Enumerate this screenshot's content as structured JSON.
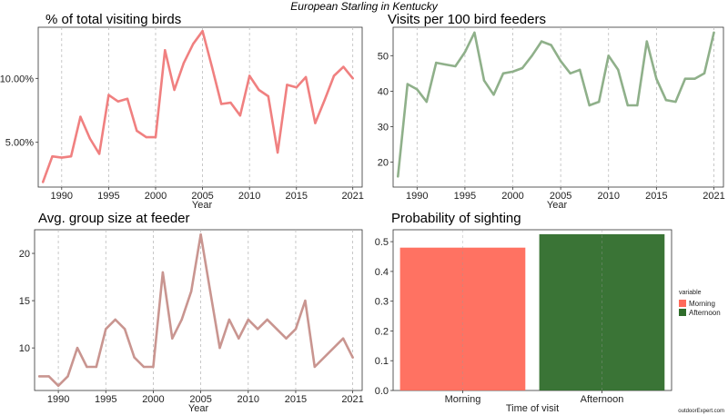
{
  "page": {
    "title": "European Starling in Kentucky",
    "credit": "outdoorExpert.com"
  },
  "chart_data": [
    {
      "id": "pct",
      "type": "line",
      "title": "% of total visiting birds",
      "xlabel": "Year",
      "ylabel": "",
      "color": "#f08080",
      "xlim": [
        1987.5,
        2022
      ],
      "ylim": [
        1.5,
        14.0
      ],
      "xticks": [
        1990,
        1995,
        2000,
        2005,
        2010,
        2015,
        2021
      ],
      "yticks": [
        5,
        10
      ],
      "ytick_labels": [
        "5.00%",
        "10.00%"
      ],
      "grid": "vertical-dashed",
      "x": [
        1988,
        1989,
        1990,
        1991,
        1992,
        1993,
        1994,
        1995,
        1996,
        1997,
        1998,
        1999,
        2000,
        2001,
        2002,
        2003,
        2004,
        2005,
        2006,
        2007,
        2008,
        2009,
        2010,
        2011,
        2012,
        2013,
        2014,
        2015,
        2016,
        2017,
        2018,
        2019,
        2020,
        2021
      ],
      "values": [
        1.9,
        3.9,
        3.8,
        3.9,
        7.0,
        5.3,
        4.1,
        8.7,
        8.2,
        8.4,
        5.9,
        5.4,
        5.4,
        12.2,
        9.1,
        11.2,
        12.7,
        13.7,
        10.9,
        8.0,
        8.1,
        7.1,
        10.2,
        9.1,
        8.6,
        4.2,
        9.5,
        9.3,
        10.1,
        6.5,
        8.3,
        10.2,
        10.9,
        10.0
      ]
    },
    {
      "id": "visits",
      "type": "line",
      "title": "Visits per 100 bird feeders",
      "xlabel": "Year",
      "ylabel": "",
      "color": "#8fb08a",
      "xlim": [
        1987.5,
        2022
      ],
      "ylim": [
        13,
        58
      ],
      "xticks": [
        1990,
        1995,
        2000,
        2005,
        2010,
        2015,
        2021
      ],
      "yticks": [
        20,
        30,
        40,
        50
      ],
      "ytick_labels": [
        "20",
        "30",
        "40",
        "50"
      ],
      "grid": "vertical-dashed",
      "x": [
        1988,
        1989,
        1990,
        1991,
        1992,
        1993,
        1994,
        1995,
        1996,
        1997,
        1998,
        1999,
        2000,
        2001,
        2002,
        2003,
        2004,
        2005,
        2006,
        2007,
        2008,
        2009,
        2010,
        2011,
        2012,
        2013,
        2014,
        2015,
        2016,
        2017,
        2018,
        2019,
        2020,
        2021
      ],
      "values": [
        16,
        42,
        40.5,
        37,
        48,
        47.5,
        47,
        51,
        56.5,
        43,
        39,
        45,
        45.5,
        46.5,
        50,
        54,
        53,
        48.5,
        45,
        46,
        36,
        37,
        50,
        46,
        36,
        36,
        54,
        43.5,
        37.5,
        37,
        43.5,
        43.5,
        45,
        56.5
      ]
    },
    {
      "id": "group",
      "type": "line",
      "title": "Avg. group size at feeder",
      "xlabel": "Year",
      "ylabel": "",
      "color": "#c99590",
      "xlim": [
        1987.5,
        2022
      ],
      "ylim": [
        5.5,
        22.5
      ],
      "xticks": [
        1990,
        1995,
        2000,
        2005,
        2010,
        2015,
        2021
      ],
      "yticks": [
        10,
        15,
        20
      ],
      "ytick_labels": [
        "10",
        "15",
        "20"
      ],
      "grid": "vertical-dashed",
      "x": [
        1988,
        1989,
        1990,
        1991,
        1992,
        1993,
        1994,
        1995,
        1996,
        1997,
        1998,
        1999,
        2000,
        2001,
        2002,
        2003,
        2004,
        2005,
        2006,
        2007,
        2008,
        2009,
        2010,
        2011,
        2012,
        2013,
        2014,
        2015,
        2016,
        2017,
        2020,
        2021
      ],
      "values": [
        7,
        7,
        6,
        7,
        10,
        8,
        8,
        12,
        13,
        12,
        9,
        8,
        8,
        18,
        11,
        13,
        16,
        22,
        16,
        10,
        13,
        11,
        13,
        12,
        13,
        12,
        11,
        12,
        15,
        8,
        11,
        9
      ]
    },
    {
      "id": "prob",
      "type": "bar",
      "title": "Probability of sighting",
      "xlabel": "Time of visit",
      "ylabel": "",
      "categories": [
        "Morning",
        "Afternoon"
      ],
      "values": [
        0.48,
        0.525
      ],
      "colors": [
        "#ff6a5a",
        "#2f6d2b"
      ],
      "ylim": [
        0,
        0.54
      ],
      "yticks": [
        0,
        0.1,
        0.2,
        0.3,
        0.4,
        0.5
      ],
      "ytick_labels": [
        "0.0",
        "0.1",
        "0.2",
        "0.3",
        "0.4",
        "0.5"
      ],
      "legend": {
        "title": "variable",
        "placement": "right",
        "entries": [
          "Morning",
          "Afternoon"
        ]
      }
    }
  ]
}
